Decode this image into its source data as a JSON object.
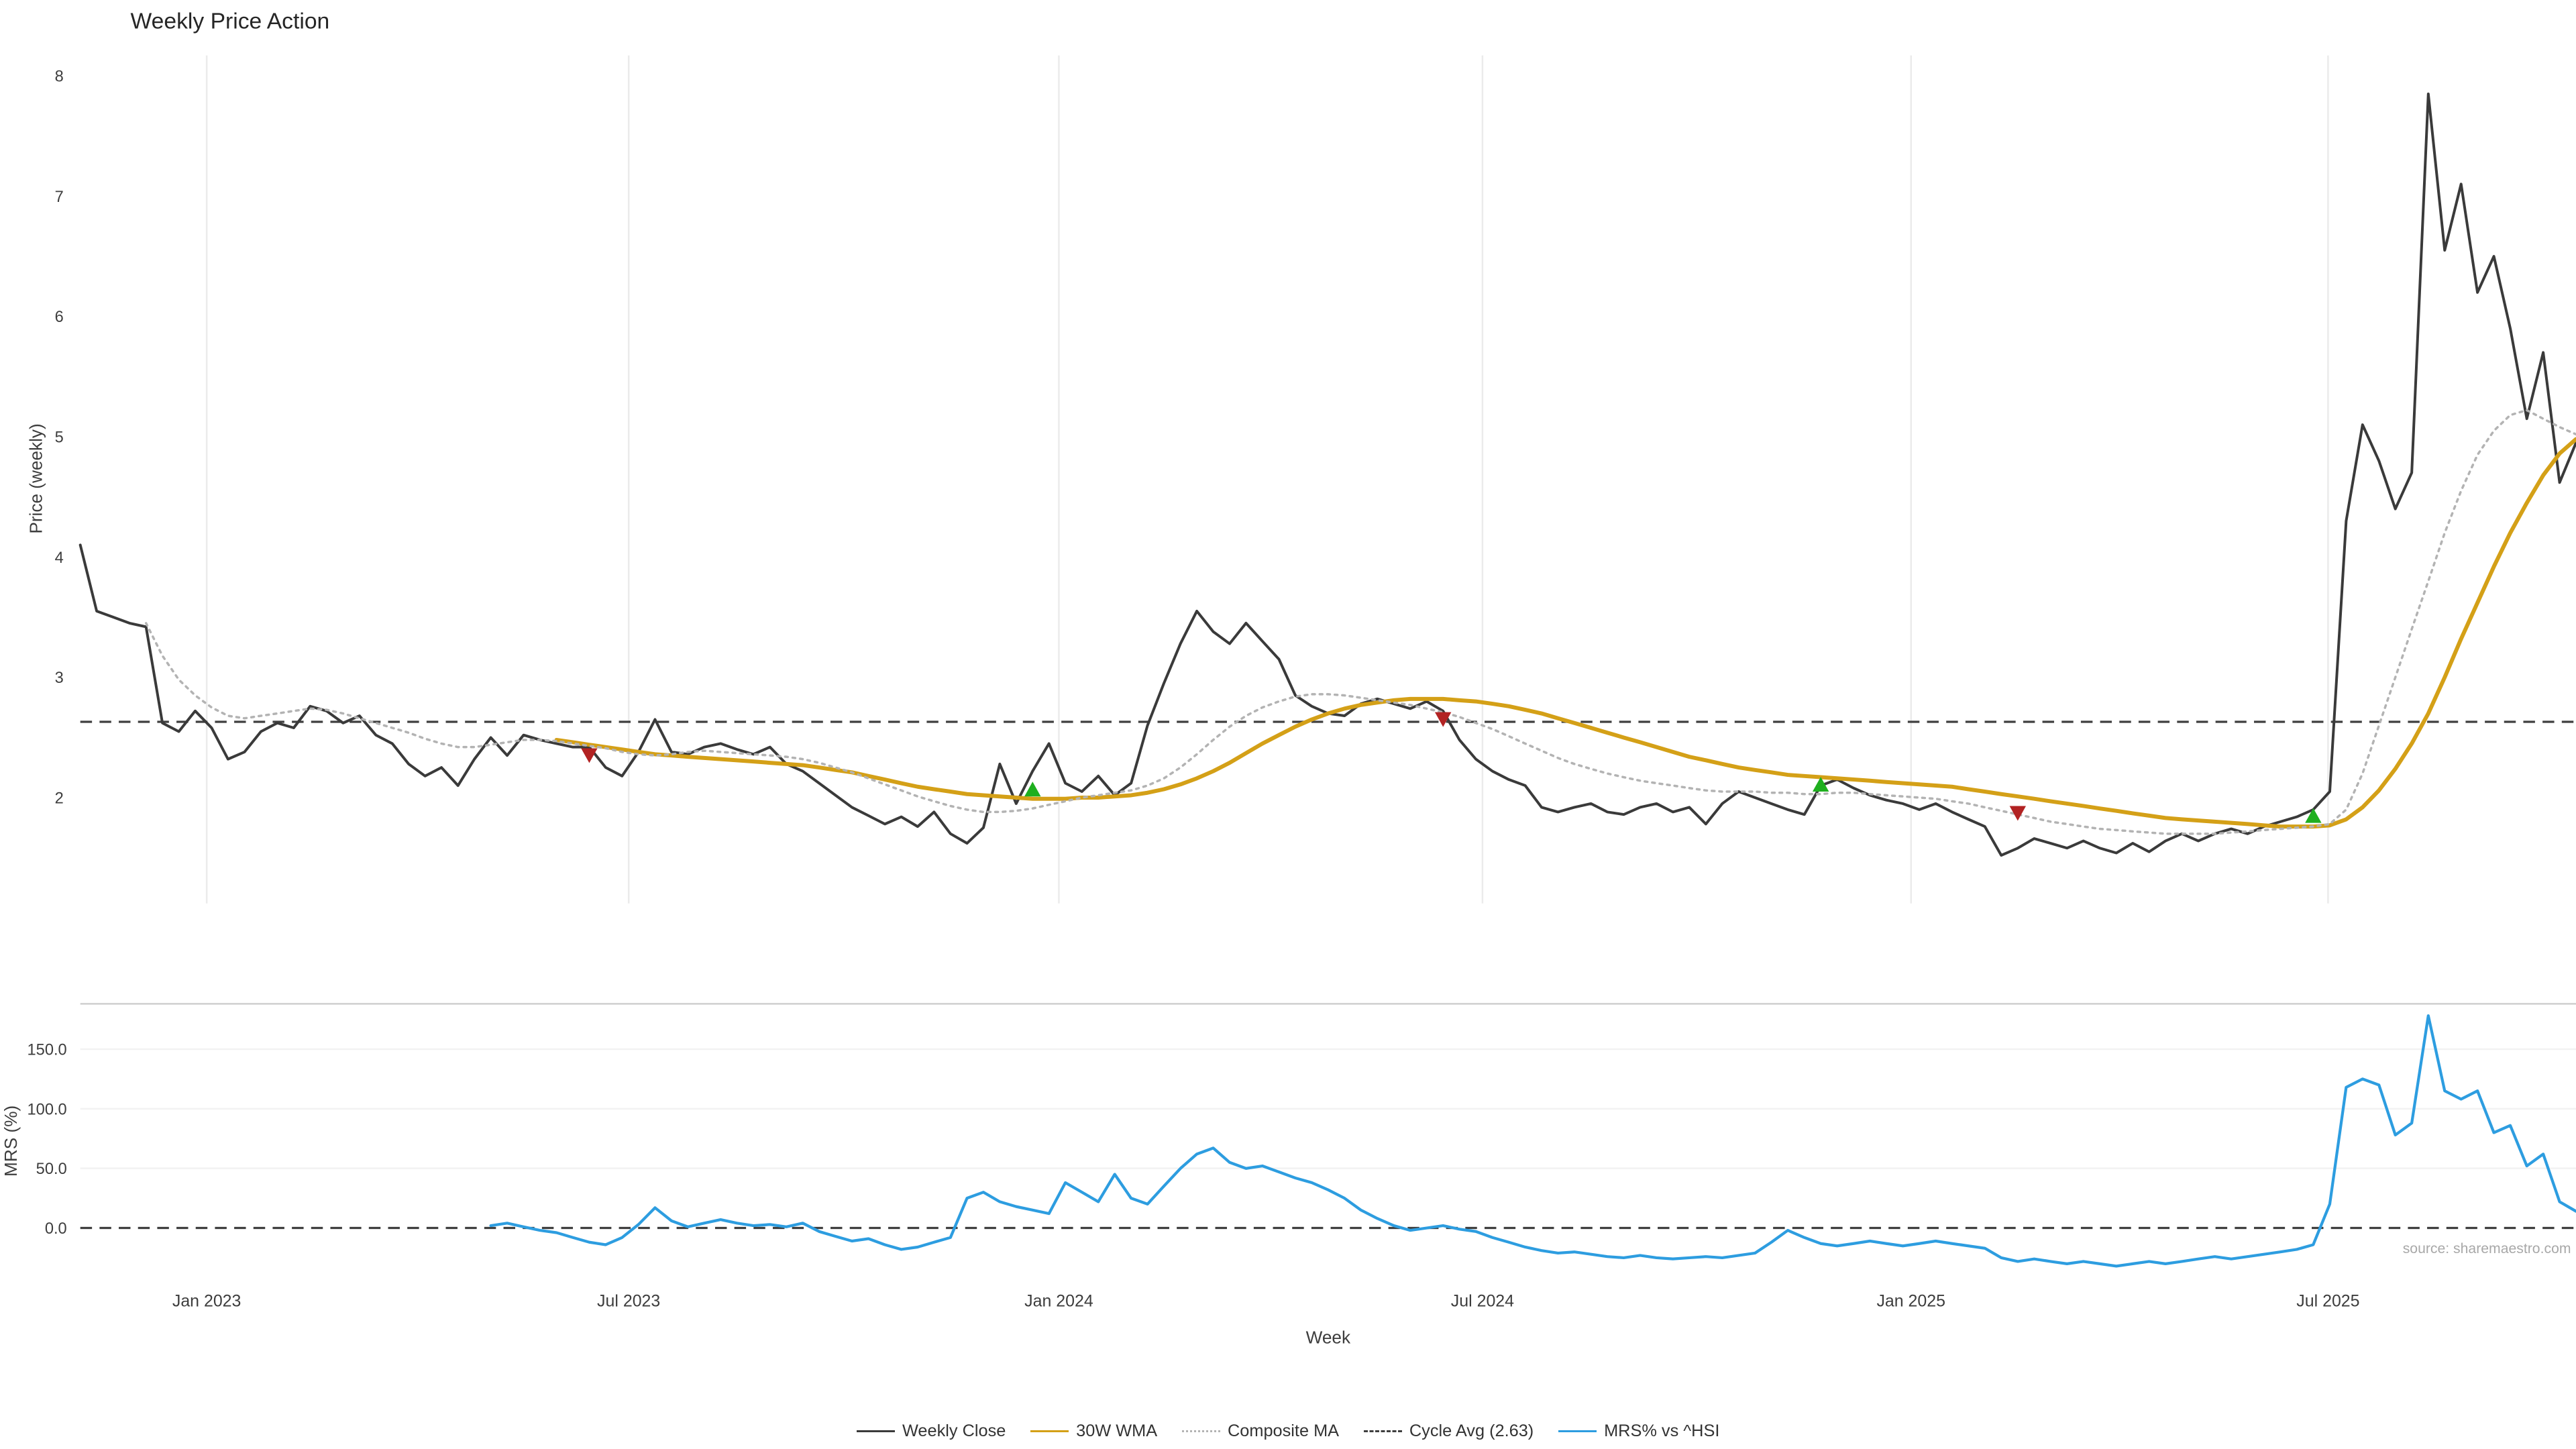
{
  "page": {
    "background": "#ffffff"
  },
  "chart_data": {
    "type": "line",
    "title": "Weekly Price Action",
    "xlabel": "Week",
    "x_axis": {
      "unit": "week",
      "range_weeks": [
        0,
        152
      ],
      "ticks": [
        {
          "label": "Jan 2023",
          "week": 7.7
        },
        {
          "label": "Jul 2023",
          "week": 33.4
        },
        {
          "label": "Jan 2024",
          "week": 59.6
        },
        {
          "label": "Jul 2024",
          "week": 85.4
        },
        {
          "label": "Jan 2025",
          "week": 111.5
        },
        {
          "label": "Jul 2025",
          "week": 136.9
        }
      ]
    },
    "colors": {
      "weekly_close": "#3a3a3a",
      "wma_30w": "#d4a017",
      "composite_ma": "#b3b3b3",
      "cycle_avg": "#3f3f3f",
      "mrs": "#2d9de0",
      "buy": "#1faf1f",
      "sell": "#b22222",
      "grid": "#ebebeb",
      "spine": "#cfcfcf"
    },
    "panels": [
      {
        "name": "price",
        "ylabel": "Price (weekly)",
        "yticks": [
          2,
          3,
          4,
          5,
          6,
          7,
          8
        ],
        "ylim": [
          1.12,
          8.17
        ],
        "ref_lines": [
          {
            "name": "Cycle Avg",
            "value": 2.63,
            "color": "#3f3f3f",
            "style": "dashed"
          }
        ],
        "series": [
          {
            "name": "Weekly Close",
            "color": "#3a3a3a",
            "style": "solid",
            "width": 1.6,
            "start": 0,
            "values": [
              4.1,
              3.55,
              3.5,
              3.45,
              3.42,
              2.62,
              2.55,
              2.72,
              2.58,
              2.32,
              2.38,
              2.55,
              2.62,
              2.58,
              2.76,
              2.72,
              2.62,
              2.68,
              2.52,
              2.45,
              2.28,
              2.18,
              2.25,
              2.1,
              2.32,
              2.5,
              2.35,
              2.52,
              2.48,
              2.45,
              2.42,
              2.42,
              2.25,
              2.18,
              2.38,
              2.65,
              2.38,
              2.36,
              2.42,
              2.45,
              2.4,
              2.36,
              2.42,
              2.28,
              2.22,
              2.12,
              2.02,
              1.92,
              1.85,
              1.78,
              1.84,
              1.76,
              1.88,
              1.7,
              1.62,
              1.75,
              2.28,
              1.95,
              2.22,
              2.45,
              2.12,
              2.05,
              2.18,
              2.02,
              2.12,
              2.6,
              2.95,
              3.28,
              3.55,
              3.38,
              3.28,
              3.45,
              3.3,
              3.15,
              2.85,
              2.76,
              2.7,
              2.68,
              2.78,
              2.82,
              2.78,
              2.74,
              2.8,
              2.72,
              2.48,
              2.32,
              2.22,
              2.15,
              2.1,
              1.92,
              1.88,
              1.92,
              1.95,
              1.88,
              1.86,
              1.92,
              1.95,
              1.88,
              1.92,
              1.78,
              1.95,
              2.05,
              2.0,
              1.95,
              1.9,
              1.86,
              2.1,
              2.15,
              2.08,
              2.02,
              1.98,
              1.95,
              1.9,
              1.95,
              1.88,
              1.82,
              1.76,
              1.52,
              1.58,
              1.66,
              1.62,
              1.58,
              1.64,
              1.58,
              1.54,
              1.62,
              1.55,
              1.64,
              1.7,
              1.64,
              1.7,
              1.74,
              1.7,
              1.76,
              1.8,
              1.84,
              1.9,
              2.05,
              4.3,
              5.1,
              4.8,
              4.4,
              4.7,
              7.85,
              6.55,
              7.1,
              6.2,
              6.5,
              5.9,
              5.15,
              5.7,
              4.62,
              4.95
            ]
          },
          {
            "name": "30W WMA",
            "color": "#d4a017",
            "style": "solid",
            "width": 2.4,
            "start": 29,
            "values": [
              2.48,
              2.46,
              2.44,
              2.42,
              2.4,
              2.38,
              2.36,
              2.35,
              2.34,
              2.33,
              2.32,
              2.31,
              2.3,
              2.29,
              2.28,
              2.27,
              2.25,
              2.23,
              2.21,
              2.18,
              2.15,
              2.12,
              2.09,
              2.07,
              2.05,
              2.03,
              2.02,
              2.01,
              2.0,
              1.99,
              1.99,
              1.99,
              2.0,
              2.0,
              2.01,
              2.02,
              2.04,
              2.07,
              2.11,
              2.16,
              2.22,
              2.29,
              2.37,
              2.45,
              2.52,
              2.59,
              2.65,
              2.7,
              2.74,
              2.77,
              2.79,
              2.81,
              2.82,
              2.82,
              2.82,
              2.81,
              2.8,
              2.78,
              2.76,
              2.73,
              2.7,
              2.66,
              2.62,
              2.58,
              2.54,
              2.5,
              2.46,
              2.42,
              2.38,
              2.34,
              2.31,
              2.28,
              2.25,
              2.23,
              2.21,
              2.19,
              2.18,
              2.17,
              2.16,
              2.15,
              2.14,
              2.13,
              2.12,
              2.11,
              2.1,
              2.09,
              2.07,
              2.05,
              2.03,
              2.01,
              1.99,
              1.97,
              1.95,
              1.93,
              1.91,
              1.89,
              1.87,
              1.85,
              1.83,
              1.82,
              1.81,
              1.8,
              1.79,
              1.78,
              1.77,
              1.76,
              1.76,
              1.76,
              1.77,
              1.82,
              1.92,
              2.06,
              2.24,
              2.45,
              2.7,
              3.0,
              3.32,
              3.62,
              3.92,
              4.2,
              4.45,
              4.68,
              4.86,
              4.98
            ]
          },
          {
            "name": "Composite MA",
            "color": "#b3b3b3",
            "style": "dotted",
            "width": 1.4,
            "start": 4,
            "values": [
              3.45,
              3.18,
              2.98,
              2.85,
              2.75,
              2.68,
              2.66,
              2.68,
              2.7,
              2.72,
              2.74,
              2.73,
              2.7,
              2.66,
              2.62,
              2.58,
              2.54,
              2.49,
              2.45,
              2.42,
              2.42,
              2.44,
              2.46,
              2.48,
              2.48,
              2.47,
              2.45,
              2.43,
              2.41,
              2.38,
              2.36,
              2.35,
              2.36,
              2.38,
              2.39,
              2.38,
              2.37,
              2.36,
              2.35,
              2.34,
              2.32,
              2.29,
              2.25,
              2.21,
              2.16,
              2.11,
              2.06,
              2.01,
              1.97,
              1.93,
              1.9,
              1.88,
              1.88,
              1.89,
              1.91,
              1.94,
              1.97,
              2.0,
              2.02,
              2.04,
              2.06,
              2.1,
              2.16,
              2.25,
              2.36,
              2.48,
              2.59,
              2.68,
              2.75,
              2.8,
              2.84,
              2.86,
              2.86,
              2.85,
              2.83,
              2.81,
              2.79,
              2.77,
              2.74,
              2.71,
              2.67,
              2.62,
              2.57,
              2.51,
              2.45,
              2.39,
              2.33,
              2.28,
              2.24,
              2.2,
              2.17,
              2.14,
              2.12,
              2.1,
              2.08,
              2.06,
              2.05,
              2.05,
              2.05,
              2.04,
              2.04,
              2.03,
              2.03,
              2.04,
              2.04,
              2.03,
              2.02,
              2.01,
              2.0,
              1.99,
              1.97,
              1.95,
              1.92,
              1.89,
              1.86,
              1.83,
              1.8,
              1.78,
              1.76,
              1.74,
              1.73,
              1.72,
              1.71,
              1.7,
              1.7,
              1.7,
              1.7,
              1.71,
              1.72,
              1.73,
              1.74,
              1.75,
              1.76,
              1.78,
              1.9,
              2.2,
              2.6,
              3.0,
              3.4,
              3.8,
              4.2,
              4.55,
              4.85,
              5.05,
              5.18,
              5.22,
              5.15,
              5.08,
              5.02
            ]
          }
        ],
        "signals": {
          "buy": {
            "shape": "triangle-up",
            "color": "#1faf1f",
            "points": [
              {
                "week": 58,
                "value": 2.06
              },
              {
                "week": 106,
                "value": 2.1
              },
              {
                "week": 136,
                "value": 1.84
              }
            ]
          },
          "sell": {
            "shape": "triangle-down",
            "color": "#b22222",
            "points": [
              {
                "week": 31,
                "value": 2.36
              },
              {
                "week": 83,
                "value": 2.66
              },
              {
                "week": 118,
                "value": 1.88
              }
            ]
          }
        }
      },
      {
        "name": "mrs",
        "ylabel": "MRS (%)",
        "yticks": [
          0,
          50,
          100,
          150
        ],
        "ytick_labels": [
          "0.0",
          "50.0",
          "100.0",
          "150.0"
        ],
        "ylim": [
          -43.5,
          188
        ],
        "ref_lines": [
          {
            "name": "zero",
            "value": 0,
            "color": "#3f3f3f",
            "style": "dashed"
          }
        ],
        "series": [
          {
            "name": "MRS% vs ^HSI",
            "color": "#2d9de0",
            "style": "solid",
            "width": 1.7,
            "start": 25,
            "values": [
              2,
              4,
              1,
              -2,
              -4,
              -8,
              -12,
              -14,
              -8,
              3,
              17,
              6,
              1,
              4,
              7,
              4,
              2,
              3,
              1,
              4,
              -3,
              -7,
              -11,
              -9,
              -14,
              -18,
              -16,
              -12,
              -8,
              25,
              30,
              22,
              18,
              15,
              12,
              38,
              30,
              22,
              45,
              25,
              20,
              35,
              50,
              62,
              67,
              55,
              50,
              52,
              47,
              42,
              38,
              32,
              25,
              15,
              8,
              2,
              -2,
              0,
              2,
              -1,
              -3,
              -8,
              -12,
              -16,
              -19,
              -21,
              -20,
              -22,
              -24,
              -25,
              -23,
              -25,
              -26,
              -25,
              -24,
              -25,
              -23,
              -21,
              -12,
              -2,
              -8,
              -13,
              -15,
              -13,
              -11,
              -13,
              -15,
              -13,
              -11,
              -13,
              -15,
              -17,
              -25,
              -28,
              -26,
              -28,
              -30,
              -28,
              -30,
              -32,
              -30,
              -28,
              -30,
              -28,
              -26,
              -24,
              -26,
              -24,
              -22,
              -20,
              -18,
              -14,
              20,
              118,
              125,
              120,
              78,
              88,
              178,
              115,
              108,
              115,
              80,
              86,
              52,
              62,
              22,
              14
            ]
          }
        ],
        "annotation": "source: sharemaestro.com"
      }
    ],
    "legend": [
      {
        "label": "Weekly Close",
        "color": "#3a3a3a",
        "style": "solid"
      },
      {
        "label": "30W WMA",
        "color": "#d4a017",
        "style": "solid"
      },
      {
        "label": "Composite MA",
        "color": "#b3b3b3",
        "style": "dotted"
      },
      {
        "label": "Cycle Avg (2.63)",
        "color": "#3f3f3f",
        "style": "dashed"
      },
      {
        "label": "MRS% vs ^HSI",
        "color": "#2d9de0",
        "style": "solid"
      }
    ]
  }
}
